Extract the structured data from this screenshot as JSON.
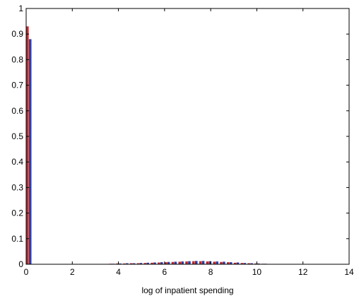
{
  "chart_data": {
    "type": "bar",
    "title": "",
    "xlabel": "log of inpatient spending",
    "ylabel": "",
    "xlim": [
      0,
      14
    ],
    "ylim": [
      0,
      1
    ],
    "x_ticks": [
      0,
      2,
      4,
      6,
      8,
      10,
      12,
      14
    ],
    "y_ticks": [
      0,
      0.1,
      0.2,
      0.3,
      0.4,
      0.5,
      0.6,
      0.7,
      0.8,
      0.9,
      1
    ],
    "x_tick_labels": [
      "0",
      "2",
      "4",
      "6",
      "8",
      "10",
      "12",
      "14"
    ],
    "y_tick_labels": [
      "0",
      "0.1",
      "0.2",
      "0.3",
      "0.4",
      "0.5",
      "0.6",
      "0.7",
      "0.8",
      "0.9",
      "1"
    ],
    "grid": false,
    "series": [
      {
        "color": "#c0282d",
        "x": [
          0.0,
          3.3,
          3.6,
          3.9,
          4.2,
          4.5,
          4.8,
          5.1,
          5.4,
          5.7,
          6.0,
          6.3,
          6.6,
          6.9,
          7.2,
          7.5,
          7.8,
          8.1,
          8.4,
          8.7,
          9.0,
          9.3,
          9.6,
          9.9,
          10.2,
          10.5,
          10.8
        ],
        "values": [
          0.93,
          0.001,
          0.002,
          0.003,
          0.003,
          0.004,
          0.004,
          0.005,
          0.006,
          0.007,
          0.008,
          0.009,
          0.01,
          0.011,
          0.012,
          0.012,
          0.011,
          0.01,
          0.009,
          0.008,
          0.006,
          0.005,
          0.004,
          0.003,
          0.002,
          0.001,
          0.001
        ]
      },
      {
        "color": "#2e3f9e",
        "x": [
          0.12,
          3.42,
          3.72,
          4.02,
          4.32,
          4.62,
          4.92,
          5.22,
          5.52,
          5.82,
          6.12,
          6.42,
          6.72,
          7.02,
          7.32,
          7.62,
          7.92,
          8.22,
          8.52,
          8.82,
          9.12,
          9.42,
          9.72,
          10.02,
          10.32,
          10.62,
          10.92
        ],
        "values": [
          0.88,
          0.001,
          0.002,
          0.003,
          0.004,
          0.004,
          0.005,
          0.006,
          0.007,
          0.008,
          0.009,
          0.01,
          0.011,
          0.012,
          0.013,
          0.013,
          0.012,
          0.011,
          0.01,
          0.008,
          0.007,
          0.005,
          0.004,
          0.003,
          0.002,
          0.001,
          0.001
        ]
      }
    ]
  }
}
